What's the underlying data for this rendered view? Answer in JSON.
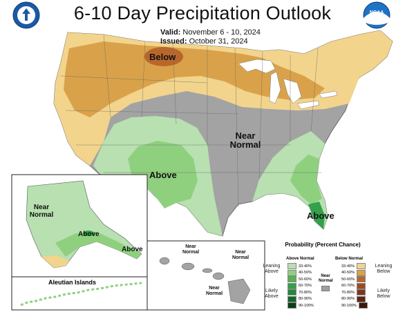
{
  "title": "6-10 Day Precipitation Outlook",
  "valid_label": "Valid:",
  "valid_dates": "November 6 - 10, 2024",
  "issued_label": "Issued:",
  "issued_date": "October 31, 2024",
  "map_labels": {
    "below": "Below",
    "near_normal_conus": "Near Normal",
    "above_southwest": "Above",
    "above_southeast": "Above",
    "alaska_near_normal": "Near Normal",
    "alaska_above_1": "Above",
    "alaska_above_2": "Above",
    "hawaii_near_normal_1": "Near Normal",
    "hawaii_near_normal_2": "Near Normal",
    "hawaii_near_normal_3": "Near Normal",
    "aleutian": "Aleutian Islands"
  },
  "legend": {
    "title": "Probability (Percent Chance)",
    "above_header": "Above Normal",
    "below_header": "Below Normal",
    "near_normal": "Near Normal",
    "leaning_above": "Leaning Above",
    "likely_above": "Likely Above",
    "leaning_below": "Leaning Below",
    "likely_below": "Likely Below",
    "above": [
      {
        "range": "33-40%",
        "color": "#b8e0b0"
      },
      {
        "range": "40-50%",
        "color": "#8fd07f"
      },
      {
        "range": "50-60%",
        "color": "#5bb14f"
      },
      {
        "range": "60-70%",
        "color": "#35a04a"
      },
      {
        "range": "70-80%",
        "color": "#1e8a3a"
      },
      {
        "range": "80-90%",
        "color": "#14652a"
      },
      {
        "range": "90-100%",
        "color": "#0a3f18"
      }
    ],
    "below": [
      {
        "range": "33-40%",
        "color": "#f2d48c"
      },
      {
        "range": "40-50%",
        "color": "#d9a24a"
      },
      {
        "range": "50-60%",
        "color": "#b8672c"
      },
      {
        "range": "60-70%",
        "color": "#9c4a22"
      },
      {
        "range": "70-80%",
        "color": "#7e361a"
      },
      {
        "range": "80-90%",
        "color": "#5e2612"
      },
      {
        "range": "90-100%",
        "color": "#3e170a"
      }
    ]
  },
  "colors": {
    "near_normal": "#a3a3a3",
    "leaning_below": "#f2d48c",
    "below_40_50": "#d9a24a",
    "below_50_60": "#b8672c",
    "leaning_above": "#b8e0b0",
    "above_40_50": "#8fd07f",
    "above_50_60": "#5bb14f",
    "water": "#ffffff"
  },
  "icons": [
    "doc-seal-icon",
    "noaa-logo-icon"
  ]
}
